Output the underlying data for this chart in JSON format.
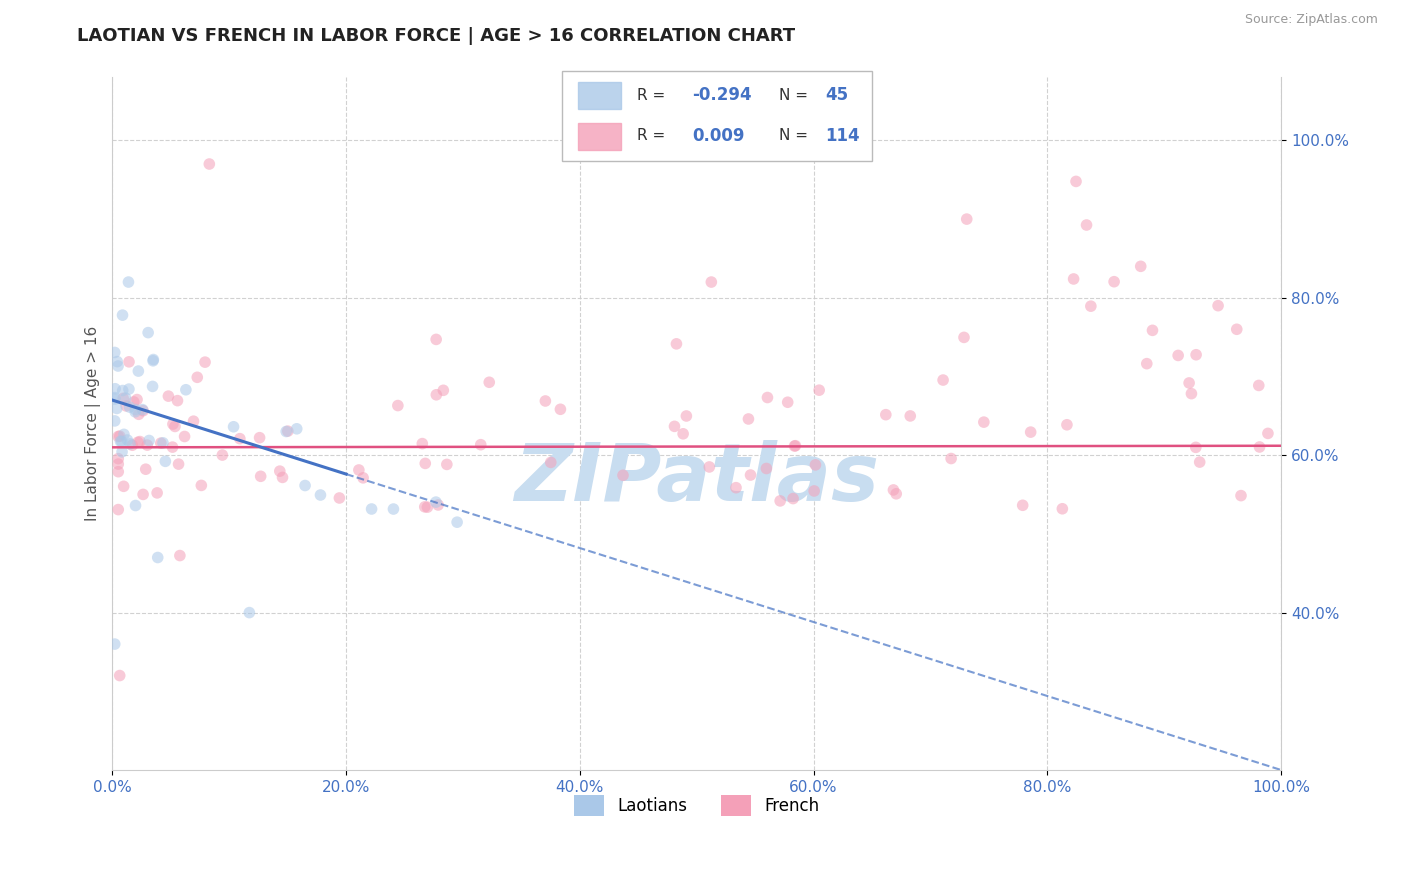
{
  "title": "LAOTIAN VS FRENCH IN LABOR FORCE | AGE > 16 CORRELATION CHART",
  "source_text": "Source: ZipAtlas.com",
  "ylabel": "In Labor Force | Age > 16",
  "R_laotian": -0.294,
  "N_laotian": 45,
  "R_french": 0.009,
  "N_french": 114,
  "xlim": [
    0,
    100
  ],
  "ylim": [
    20,
    108
  ],
  "yticks": [
    40,
    60,
    80,
    100
  ],
  "ytick_labels": [
    "40.0%",
    "60.0%",
    "80.0%",
    "100.0%"
  ],
  "xticks": [
    0,
    20,
    40,
    60,
    80,
    100
  ],
  "xtick_labels": [
    "0.0%",
    "20.0%",
    "40.0%",
    "60.0%",
    "80.0%",
    "100.0%"
  ],
  "bg_color": "#ffffff",
  "grid_color": "#cccccc",
  "dot_alpha": 0.55,
  "dot_size": 70,
  "laotian_color": "#aac8e8",
  "french_color": "#f4a0b8",
  "trendline_laotian_color": "#4472c4",
  "trendline_french_color": "#e05080",
  "watermark_color": "#c8ddf0",
  "legend_R_color": "#4472c4",
  "tick_color": "#4472c4",
  "seed": 77
}
